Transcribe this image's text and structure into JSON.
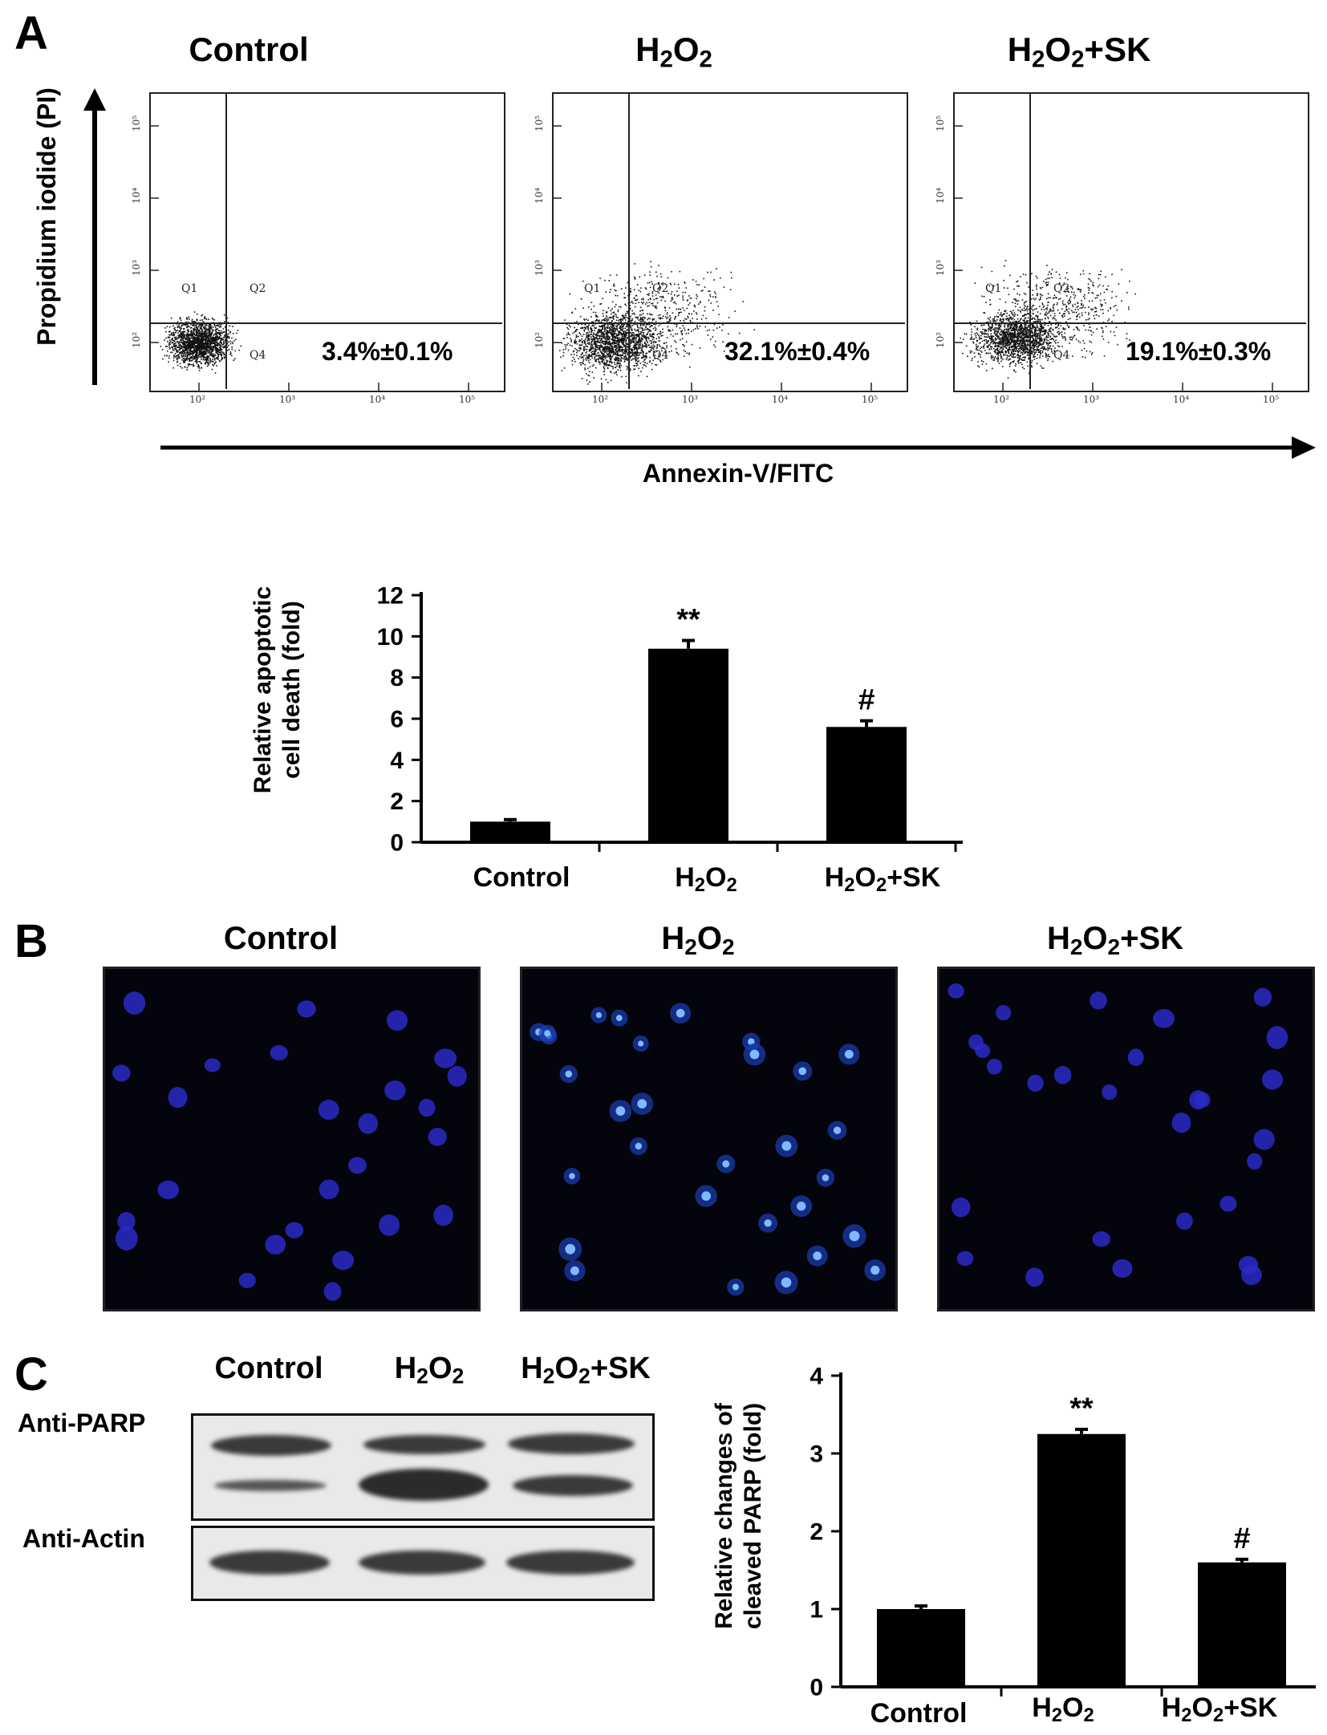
{
  "panels": {
    "a": {
      "letter": "A",
      "conditions": [
        "Control",
        "H2O2",
        "H2O2+SK"
      ],
      "flow": {
        "y_axis_label": "Propidium iodide (PI)",
        "x_axis_label": "Annexin-V/FITC",
        "quadrant_labels": [
          "Q1",
          "Q2",
          "Q4"
        ],
        "log_ticks": [
          "10²",
          "10³",
          "10⁴",
          "10⁵"
        ],
        "percentages": [
          "3.4%±0.1%",
          "32.1%±0.4%",
          "19.1%±0.3%"
        ]
      }
    },
    "b": {
      "letter": "B",
      "conditions": [
        "Control",
        "H2O2",
        "H2O2+SK"
      ]
    },
    "c": {
      "letter": "C",
      "conditions": [
        "Control",
        "H2O2",
        "H2O2+SK"
      ],
      "blot_labels": [
        "Anti-PARP",
        "Anti-Actin"
      ]
    }
  },
  "colors": {
    "bar": "#000000",
    "nucleus_normal": "#2a2ac8",
    "nucleus_bright": "#7fb8ff",
    "blot_bg": "#e9e9e9"
  },
  "chart_data": [
    {
      "type": "bar",
      "categories": [
        "Control",
        "H2O2",
        "H2O2+SK"
      ],
      "values": [
        1.0,
        9.4,
        5.6
      ],
      "errors": [
        0.1,
        0.4,
        0.3
      ],
      "annotations": [
        "",
        "**",
        "#"
      ],
      "ylabel": "Relative apoptotic cell death (fold)",
      "ylim": [
        0,
        12
      ],
      "yticks": [
        0,
        2,
        4,
        6,
        8,
        10,
        12
      ]
    },
    {
      "type": "bar",
      "categories": [
        "Control",
        "H2O2",
        "H2O2+SK"
      ],
      "values": [
        1.0,
        3.25,
        1.6
      ],
      "errors": [
        0.04,
        0.06,
        0.04
      ],
      "annotations": [
        "",
        "**",
        "#"
      ],
      "ylabel": "Relative changes of cleaved PARP (fold)",
      "ylim": [
        0,
        4
      ],
      "yticks": [
        0,
        1,
        2,
        3,
        4
      ]
    }
  ]
}
